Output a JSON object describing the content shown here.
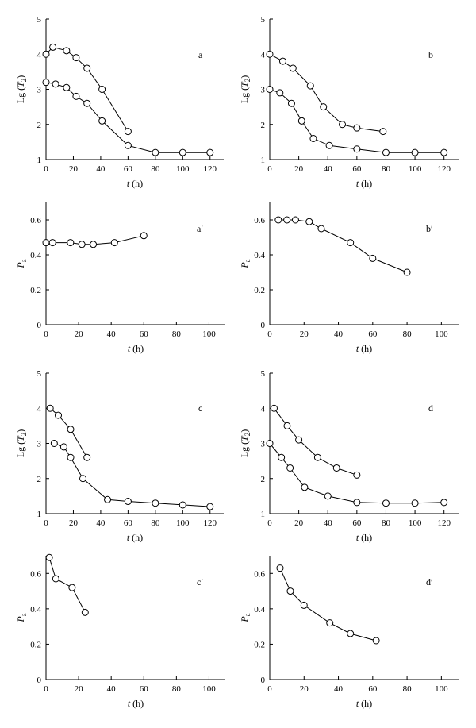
{
  "chart_data": [
    {
      "panel": "a",
      "type": "line",
      "xlabel": {
        "italic": "t",
        "rest": " (h)"
      },
      "ylabel": {
        "pre": "Lg (",
        "italic": "T",
        "sub": "2",
        "post": ")"
      },
      "xlim": [
        0,
        130
      ],
      "ylim": [
        1,
        5
      ],
      "xticks": [
        0,
        20,
        40,
        60,
        80,
        100,
        120
      ],
      "yticks": [
        1,
        2,
        3,
        4,
        5
      ],
      "series": [
        {
          "x": [
            0,
            5,
            15,
            22,
            30,
            41,
            60
          ],
          "y": [
            4.0,
            4.2,
            4.1,
            3.9,
            3.6,
            3.0,
            1.8
          ]
        },
        {
          "x": [
            0,
            7,
            15,
            22,
            30,
            41,
            60,
            80,
            100,
            120
          ],
          "y": [
            3.2,
            3.15,
            3.05,
            2.8,
            2.6,
            2.1,
            1.4,
            1.2,
            1.2,
            1.2
          ]
        }
      ]
    },
    {
      "panel": "b",
      "type": "line",
      "xlabel": {
        "italic": "t",
        "rest": " (h)"
      },
      "ylabel": {
        "pre": "Lg (",
        "italic": "T",
        "sub": "2",
        "post": ")"
      },
      "xlim": [
        0,
        130
      ],
      "ylim": [
        1,
        5
      ],
      "xticks": [
        0,
        20,
        40,
        60,
        80,
        100,
        120
      ],
      "yticks": [
        1,
        2,
        3,
        4,
        5
      ],
      "series": [
        {
          "x": [
            0,
            9,
            16,
            28,
            37,
            50,
            60,
            78
          ],
          "y": [
            4.0,
            3.8,
            3.6,
            3.1,
            2.5,
            2.0,
            1.9,
            1.8
          ]
        },
        {
          "x": [
            0,
            7,
            15,
            22,
            30,
            41,
            60,
            80,
            100,
            120
          ],
          "y": [
            3.0,
            2.9,
            2.6,
            2.1,
            1.6,
            1.4,
            1.3,
            1.2,
            1.2,
            1.2
          ]
        }
      ]
    },
    {
      "panel": "a′",
      "type": "line",
      "xlabel": {
        "italic": "t",
        "rest": " (h)"
      },
      "ylabel": {
        "pre": "",
        "italic": "P",
        "sub": "a",
        "post": ""
      },
      "xlim": [
        0,
        110
      ],
      "ylim": [
        0,
        0.7
      ],
      "xticks": [
        0,
        20,
        40,
        60,
        80,
        100
      ],
      "yticks": [
        0,
        0.2,
        0.4,
        0.6
      ],
      "ytickLabels": [
        "0",
        "0.2",
        "0.4",
        "0.6"
      ],
      "series": [
        {
          "x": [
            0,
            4,
            15,
            22,
            29,
            42,
            60
          ],
          "y": [
            0.47,
            0.47,
            0.47,
            0.46,
            0.46,
            0.47,
            0.51
          ]
        }
      ]
    },
    {
      "panel": "b′",
      "type": "line",
      "xlabel": {
        "italic": "t",
        "rest": " (h)"
      },
      "ylabel": {
        "pre": "",
        "italic": "P",
        "sub": "a",
        "post": ""
      },
      "xlim": [
        0,
        110
      ],
      "ylim": [
        0,
        0.7
      ],
      "xticks": [
        0,
        20,
        40,
        60,
        80,
        100
      ],
      "yticks": [
        0,
        0.2,
        0.4,
        0.6
      ],
      "ytickLabels": [
        "0",
        "0.2",
        "0.4",
        "0.6"
      ],
      "series": [
        {
          "x": [
            5,
            10,
            15,
            23,
            30,
            47,
            60,
            80
          ],
          "y": [
            0.6,
            0.6,
            0.6,
            0.59,
            0.55,
            0.47,
            0.38,
            0.3
          ]
        }
      ]
    },
    {
      "panel": "c",
      "type": "line",
      "xlabel": {
        "italic": "t",
        "rest": " (h)"
      },
      "ylabel": {
        "pre": "Lg (",
        "italic": "T",
        "sub": "2",
        "post": ")"
      },
      "xlim": [
        0,
        130
      ],
      "ylim": [
        1,
        5
      ],
      "xticks": [
        0,
        20,
        40,
        60,
        80,
        100,
        120
      ],
      "yticks": [
        1,
        2,
        3,
        4,
        5
      ],
      "series": [
        {
          "x": [
            3,
            9,
            18,
            30
          ],
          "y": [
            4.0,
            3.8,
            3.4,
            2.6
          ]
        },
        {
          "x": [
            6,
            13,
            18,
            27,
            45,
            60,
            80,
            100,
            120
          ],
          "y": [
            3.0,
            2.9,
            2.6,
            2.0,
            1.4,
            1.35,
            1.3,
            1.25,
            1.2
          ]
        }
      ]
    },
    {
      "panel": "d",
      "type": "line",
      "xlabel": {
        "italic": "t",
        "rest": " (h)"
      },
      "ylabel": {
        "pre": "Lg (",
        "italic": "T",
        "sub": "2",
        "post": ")"
      },
      "xlim": [
        0,
        130
      ],
      "ylim": [
        1,
        5
      ],
      "xticks": [
        0,
        20,
        40,
        60,
        80,
        100,
        120
      ],
      "yticks": [
        1,
        2,
        3,
        4,
        5
      ],
      "series": [
        {
          "x": [
            3,
            12,
            20,
            33,
            46,
            60
          ],
          "y": [
            4.0,
            3.5,
            3.1,
            2.6,
            2.3,
            2.1
          ]
        },
        {
          "x": [
            0,
            8,
            14,
            24,
            40,
            60,
            80,
            100,
            120
          ],
          "y": [
            3.0,
            2.6,
            2.3,
            1.75,
            1.5,
            1.32,
            1.3,
            1.3,
            1.32
          ]
        }
      ]
    },
    {
      "panel": "c′",
      "type": "line",
      "xlabel": {
        "italic": "t",
        "rest": " (h)"
      },
      "ylabel": {
        "pre": "",
        "italic": "P",
        "sub": "a",
        "post": ""
      },
      "xlim": [
        0,
        110
      ],
      "ylim": [
        0,
        0.7
      ],
      "xticks": [
        0,
        20,
        40,
        60,
        80,
        100
      ],
      "yticks": [
        0,
        0.2,
        0.4,
        0.6
      ],
      "ytickLabels": [
        "0",
        "0.2",
        "0.4",
        "0.6"
      ],
      "series": [
        {
          "x": [
            2,
            6,
            16,
            24
          ],
          "y": [
            0.69,
            0.57,
            0.52,
            0.38
          ]
        }
      ]
    },
    {
      "panel": "d′",
      "type": "line",
      "xlabel": {
        "italic": "t",
        "rest": " (h)"
      },
      "ylabel": {
        "pre": "",
        "italic": "P",
        "sub": "a",
        "post": ""
      },
      "xlim": [
        0,
        110
      ],
      "ylim": [
        0,
        0.7
      ],
      "xticks": [
        0,
        20,
        40,
        60,
        80,
        100
      ],
      "yticks": [
        0,
        0.2,
        0.4,
        0.6
      ],
      "ytickLabels": [
        "0",
        "0.2",
        "0.4",
        "0.6"
      ],
      "series": [
        {
          "x": [
            6,
            12,
            20,
            35,
            47,
            62
          ],
          "y": [
            0.63,
            0.5,
            0.42,
            0.32,
            0.26,
            0.22
          ]
        }
      ]
    }
  ]
}
